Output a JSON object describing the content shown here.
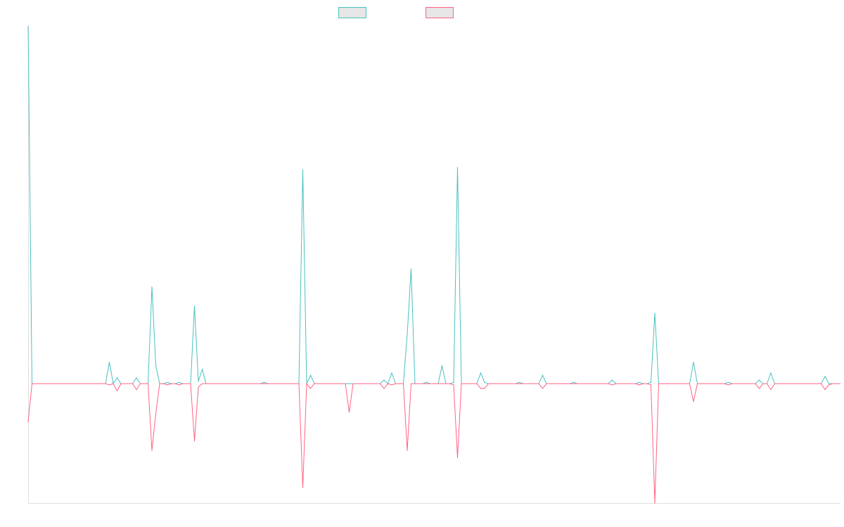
{
  "chart_data": {
    "type": "line",
    "title": "",
    "xlabel": "",
    "ylabel": "",
    "xlim": [
      0,
      210
    ],
    "ylim": [
      -1,
      3
    ],
    "grid": false,
    "legend": "top",
    "baseline_value": 0,
    "series": [
      {
        "name": "",
        "color": "#4bc0c0",
        "legend_fill": "#e6e6e6",
        "points": [
          [
            0,
            2.99
          ],
          [
            21,
            0.18
          ],
          [
            23,
            0.05
          ],
          [
            28,
            0.05
          ],
          [
            32,
            0.81
          ],
          [
            33,
            0.15
          ],
          [
            36,
            0.01
          ],
          [
            39,
            0.01
          ],
          [
            43,
            0.65
          ],
          [
            44,
            0.02
          ],
          [
            45,
            0.12
          ],
          [
            61,
            0.01
          ],
          [
            71,
            1.79
          ],
          [
            73,
            0.07
          ],
          [
            92,
            0.03
          ],
          [
            94,
            0.09
          ],
          [
            98,
            0.41
          ],
          [
            99,
            0.96
          ],
          [
            103,
            0.01
          ],
          [
            107,
            0.15
          ],
          [
            110,
            0.01
          ],
          [
            111,
            1.81
          ],
          [
            117,
            0.09
          ],
          [
            118,
            0.01
          ],
          [
            127,
            0.01
          ],
          [
            133,
            0.07
          ],
          [
            141,
            0.01
          ],
          [
            151,
            0.03
          ],
          [
            158,
            0.01
          ],
          [
            161,
            0.01
          ],
          [
            162,
            0.59
          ],
          [
            172,
            0.18
          ],
          [
            181,
            0.01
          ],
          [
            189,
            0.03
          ],
          [
            192,
            0.09
          ],
          [
            206,
            0.06
          ]
        ]
      },
      {
        "name": "",
        "color": "#ff6384",
        "legend_fill": "#e6e6e6",
        "points": [
          [
            0,
            -0.32
          ],
          [
            21,
            -0.01
          ],
          [
            23,
            -0.06
          ],
          [
            28,
            -0.05
          ],
          [
            32,
            -0.56
          ],
          [
            33,
            -0.25
          ],
          [
            36,
            -0.01
          ],
          [
            39,
            -0.01
          ],
          [
            43,
            -0.48
          ],
          [
            44,
            -0.03
          ],
          [
            71,
            -0.87
          ],
          [
            73,
            -0.04
          ],
          [
            83,
            -0.24
          ],
          [
            92,
            -0.04
          ],
          [
            94,
            -0.01
          ],
          [
            98,
            -0.56
          ],
          [
            110,
            -0.01
          ],
          [
            111,
            -0.62
          ],
          [
            117,
            -0.04
          ],
          [
            118,
            -0.04
          ],
          [
            133,
            -0.04
          ],
          [
            151,
            -0.01
          ],
          [
            158,
            -0.01
          ],
          [
            161,
            -0.01
          ],
          [
            162,
            -1.0
          ],
          [
            172,
            -0.15
          ],
          [
            181,
            -0.01
          ],
          [
            189,
            -0.04
          ],
          [
            192,
            -0.05
          ],
          [
            206,
            -0.05
          ],
          [
            207,
            -0.01
          ]
        ]
      }
    ]
  },
  "colors": {
    "axis": "#e0e0e0",
    "baseline": "#9aa0a6"
  }
}
